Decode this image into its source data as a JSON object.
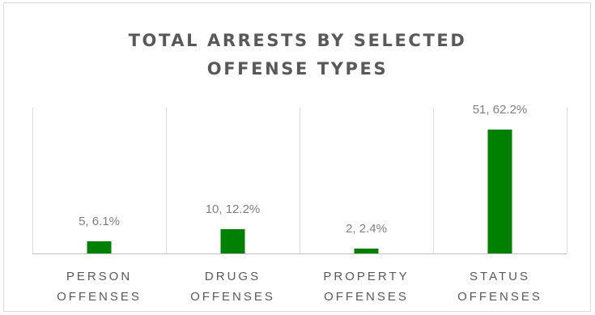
{
  "chart_data": {
    "type": "bar",
    "title_lines": [
      "TOTAL ARRESTS BY SELECTED",
      "OFFENSE TYPES"
    ],
    "categories": [
      [
        "PERSON",
        "OFFENSES"
      ],
      [
        "DRUGS",
        "OFFENSES"
      ],
      [
        "PROPERTY",
        "OFFENSES"
      ],
      [
        "STATUS",
        "OFFENSES"
      ]
    ],
    "values": [
      5,
      10,
      2,
      51
    ],
    "data_labels": [
      "5, 6.1%",
      "10, 12.2%",
      "2, 2.4%",
      "51, 62.2%"
    ],
    "ylim": [
      0,
      60
    ],
    "grid": "vertical-category-separators",
    "legend": "none",
    "bar_color": "#008000"
  }
}
